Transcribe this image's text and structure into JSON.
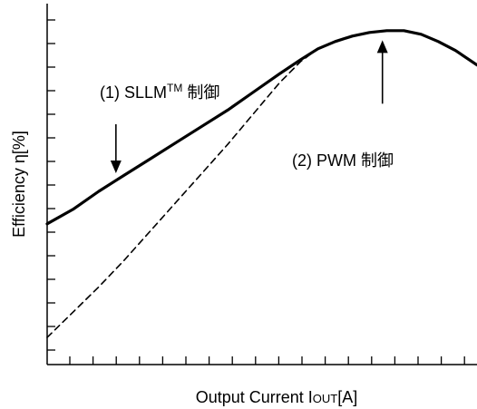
{
  "chart_data": {
    "type": "line",
    "title": "",
    "xlabel": "Output Current I",
    "xlabel_subscript": "OUT",
    "xlabel_unit": "[A]",
    "ylabel": "Efficiency η[%]",
    "grid": false,
    "x_ticks": 18,
    "y_ticks": 15,
    "xlim": [
      0,
      10
    ],
    "ylim": [
      0,
      10
    ],
    "series": [
      {
        "name": "(1) SLLM™ 制御",
        "style": "solid",
        "x": [
          0.0,
          0.6,
          1.2,
          1.8,
          2.4,
          3.0,
          3.6,
          4.2,
          4.8,
          5.4,
          5.9,
          6.3,
          6.7,
          7.1,
          7.5,
          7.9,
          8.3,
          8.7,
          9.1,
          9.5,
          10.0
        ],
        "y": [
          3.9,
          4.3,
          4.8,
          5.25,
          5.7,
          6.15,
          6.6,
          7.05,
          7.55,
          8.05,
          8.45,
          8.75,
          8.95,
          9.1,
          9.2,
          9.25,
          9.25,
          9.15,
          8.95,
          8.7,
          8.3
        ]
      },
      {
        "name": "(2) PWM 制御",
        "style": "dashed",
        "x": [
          0.0,
          0.6,
          1.2,
          1.8,
          2.4,
          3.0,
          3.6,
          4.2,
          4.8,
          5.4,
          5.9,
          6.3,
          6.7,
          7.1,
          7.5,
          7.9,
          8.3,
          8.7,
          9.1,
          9.5,
          10.0
        ],
        "y": [
          0.75,
          1.45,
          2.15,
          2.9,
          3.7,
          4.5,
          5.3,
          6.1,
          6.95,
          7.8,
          8.4,
          8.75,
          8.95,
          9.1,
          9.2,
          9.25,
          9.25,
          9.15,
          8.95,
          8.7,
          8.3
        ]
      }
    ],
    "annotations": [
      {
        "series": 0,
        "text": "(1)  SLLM",
        "superscript": "TM",
        "suffix": " 制御",
        "arrow": "down",
        "at_x": 1.6
      },
      {
        "series": 1,
        "text": "(2) PWM 制御",
        "arrow": "up",
        "at_x": 7.8
      }
    ]
  }
}
